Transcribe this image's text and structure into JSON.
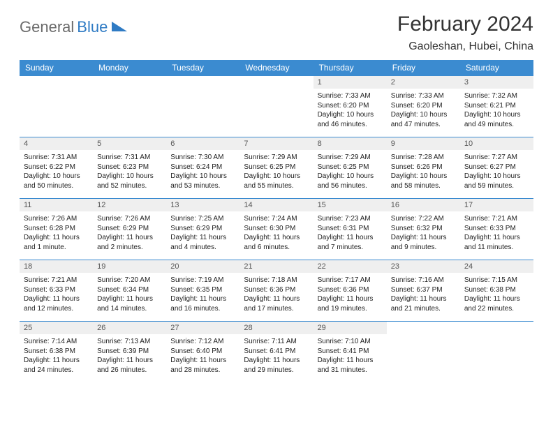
{
  "logo": {
    "part1": "General",
    "part2": "Blue"
  },
  "title": "February 2024",
  "location": "Gaoleshan, Hubei, China",
  "colors": {
    "header_bg": "#3b8bd0",
    "header_text": "#ffffff",
    "daynum_bg": "#efefef",
    "border": "#3b8bd0",
    "logo_gray": "#6b6b6b",
    "logo_blue": "#2f7bc4"
  },
  "weekdays": [
    "Sunday",
    "Monday",
    "Tuesday",
    "Wednesday",
    "Thursday",
    "Friday",
    "Saturday"
  ],
  "first_weekday": 4,
  "days": [
    {
      "n": 1,
      "sr": "7:33 AM",
      "ss": "6:20 PM",
      "dl": "10 hours and 46 minutes."
    },
    {
      "n": 2,
      "sr": "7:33 AM",
      "ss": "6:20 PM",
      "dl": "10 hours and 47 minutes."
    },
    {
      "n": 3,
      "sr": "7:32 AM",
      "ss": "6:21 PM",
      "dl": "10 hours and 49 minutes."
    },
    {
      "n": 4,
      "sr": "7:31 AM",
      "ss": "6:22 PM",
      "dl": "10 hours and 50 minutes."
    },
    {
      "n": 5,
      "sr": "7:31 AM",
      "ss": "6:23 PM",
      "dl": "10 hours and 52 minutes."
    },
    {
      "n": 6,
      "sr": "7:30 AM",
      "ss": "6:24 PM",
      "dl": "10 hours and 53 minutes."
    },
    {
      "n": 7,
      "sr": "7:29 AM",
      "ss": "6:25 PM",
      "dl": "10 hours and 55 minutes."
    },
    {
      "n": 8,
      "sr": "7:29 AM",
      "ss": "6:25 PM",
      "dl": "10 hours and 56 minutes."
    },
    {
      "n": 9,
      "sr": "7:28 AM",
      "ss": "6:26 PM",
      "dl": "10 hours and 58 minutes."
    },
    {
      "n": 10,
      "sr": "7:27 AM",
      "ss": "6:27 PM",
      "dl": "10 hours and 59 minutes."
    },
    {
      "n": 11,
      "sr": "7:26 AM",
      "ss": "6:28 PM",
      "dl": "11 hours and 1 minute."
    },
    {
      "n": 12,
      "sr": "7:26 AM",
      "ss": "6:29 PM",
      "dl": "11 hours and 2 minutes."
    },
    {
      "n": 13,
      "sr": "7:25 AM",
      "ss": "6:29 PM",
      "dl": "11 hours and 4 minutes."
    },
    {
      "n": 14,
      "sr": "7:24 AM",
      "ss": "6:30 PM",
      "dl": "11 hours and 6 minutes."
    },
    {
      "n": 15,
      "sr": "7:23 AM",
      "ss": "6:31 PM",
      "dl": "11 hours and 7 minutes."
    },
    {
      "n": 16,
      "sr": "7:22 AM",
      "ss": "6:32 PM",
      "dl": "11 hours and 9 minutes."
    },
    {
      "n": 17,
      "sr": "7:21 AM",
      "ss": "6:33 PM",
      "dl": "11 hours and 11 minutes."
    },
    {
      "n": 18,
      "sr": "7:21 AM",
      "ss": "6:33 PM",
      "dl": "11 hours and 12 minutes."
    },
    {
      "n": 19,
      "sr": "7:20 AM",
      "ss": "6:34 PM",
      "dl": "11 hours and 14 minutes."
    },
    {
      "n": 20,
      "sr": "7:19 AM",
      "ss": "6:35 PM",
      "dl": "11 hours and 16 minutes."
    },
    {
      "n": 21,
      "sr": "7:18 AM",
      "ss": "6:36 PM",
      "dl": "11 hours and 17 minutes."
    },
    {
      "n": 22,
      "sr": "7:17 AM",
      "ss": "6:36 PM",
      "dl": "11 hours and 19 minutes."
    },
    {
      "n": 23,
      "sr": "7:16 AM",
      "ss": "6:37 PM",
      "dl": "11 hours and 21 minutes."
    },
    {
      "n": 24,
      "sr": "7:15 AM",
      "ss": "6:38 PM",
      "dl": "11 hours and 22 minutes."
    },
    {
      "n": 25,
      "sr": "7:14 AM",
      "ss": "6:38 PM",
      "dl": "11 hours and 24 minutes."
    },
    {
      "n": 26,
      "sr": "7:13 AM",
      "ss": "6:39 PM",
      "dl": "11 hours and 26 minutes."
    },
    {
      "n": 27,
      "sr": "7:12 AM",
      "ss": "6:40 PM",
      "dl": "11 hours and 28 minutes."
    },
    {
      "n": 28,
      "sr": "7:11 AM",
      "ss": "6:41 PM",
      "dl": "11 hours and 29 minutes."
    },
    {
      "n": 29,
      "sr": "7:10 AM",
      "ss": "6:41 PM",
      "dl": "11 hours and 31 minutes."
    }
  ],
  "labels": {
    "sunrise": "Sunrise:",
    "sunset": "Sunset:",
    "daylight": "Daylight:"
  }
}
